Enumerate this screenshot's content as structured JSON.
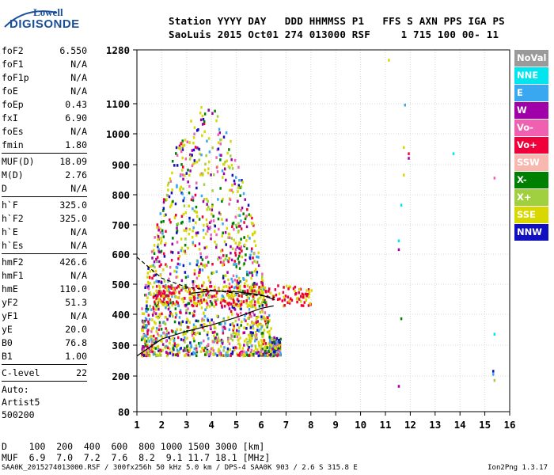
{
  "logo": {
    "line1": "Lowell",
    "line2": "DIGISONDE"
  },
  "header": {
    "row1": "Station YYYY DAY   DDD HHMMSS P1   FFS S AXN PPS IGA PS",
    "row2": "SaoLuis 2015 Oct01 274 013000 RSF     1 715 100 00- 11"
  },
  "params": [
    {
      "label": "foF2",
      "value": "6.550"
    },
    {
      "label": "foF1",
      "value": "N/A"
    },
    {
      "label": "foF1p",
      "value": "N/A"
    },
    {
      "label": "foE",
      "value": "N/A"
    },
    {
      "label": "foEp",
      "value": "0.43"
    },
    {
      "label": "fxI",
      "value": "6.90"
    },
    {
      "label": "foEs",
      "value": "N/A"
    },
    {
      "label": "fmin",
      "value": "1.80"
    },
    {
      "sep": true
    },
    {
      "label": "MUF(D)",
      "value": "18.09"
    },
    {
      "label": "M(D)",
      "value": "2.76"
    },
    {
      "label": "D",
      "value": "N/A"
    },
    {
      "sep": true
    },
    {
      "label": "h`F",
      "value": "325.0"
    },
    {
      "label": "h`F2",
      "value": "325.0"
    },
    {
      "label": "h`E",
      "value": "N/A"
    },
    {
      "label": "h`Es",
      "value": "N/A"
    },
    {
      "sep": true
    },
    {
      "label": "hmF2",
      "value": "426.6"
    },
    {
      "label": "hmF1",
      "value": "N/A"
    },
    {
      "label": "hmE",
      "value": "110.0"
    },
    {
      "label": "yF2",
      "value": "51.3"
    },
    {
      "label": "yF1",
      "value": "N/A"
    },
    {
      "label": "yE",
      "value": "20.0"
    },
    {
      "label": "B0",
      "value": "76.8"
    },
    {
      "label": "B1",
      "value": "1.00"
    },
    {
      "sep": true
    },
    {
      "label": "C-level",
      "value": "22"
    },
    {
      "sep": true
    },
    {
      "text": "Auto:"
    },
    {
      "text": "Artist5"
    },
    {
      "text": "500200"
    }
  ],
  "muf_table": {
    "row1": "D    100  200  400  600  800 1000 1500 3000 [km]",
    "row2": "MUF  6.9  7.0  7.2  7.6  8.2  9.1 11.7 18.1 [MHz]"
  },
  "footer": {
    "left": "SAA0K_2015274013000.RSF / 300fx256h 50 kHz 5.0 km / DPS-4 SAA0K 903 / 2.6 S 315.8 E",
    "right": "Ion2Png 1.3.17"
  },
  "legend": [
    {
      "label": "NoVal",
      "color": "#9a9a9a"
    },
    {
      "label": "NNE",
      "color": "#00e5ee"
    },
    {
      "label": "E",
      "color": "#3aa8f0"
    },
    {
      "label": "W",
      "color": "#a000a8"
    },
    {
      "label": "Vo-",
      "color": "#f060b0"
    },
    {
      "label": "Vo+",
      "color": "#f0003a"
    },
    {
      "label": "SSW",
      "color": "#f8b8b0"
    },
    {
      "label": "X-",
      "color": "#008000"
    },
    {
      "label": "X+",
      "color": "#a0d040"
    },
    {
      "label": "SSE",
      "color": "#d8d800"
    },
    {
      "label": "NNW",
      "color": "#1010c0"
    }
  ],
  "chart_data": {
    "type": "scatter",
    "title": "",
    "xlabel": "",
    "ylabel": "",
    "xlim": [
      1,
      16
    ],
    "ylim": [
      80,
      1280
    ],
    "x_ticks": [
      1,
      2,
      3,
      4,
      5,
      6,
      7,
      8,
      9,
      10,
      11,
      12,
      13,
      14,
      15,
      16
    ],
    "y_ticks": [
      80,
      200,
      300,
      400,
      500,
      600,
      700,
      800,
      900,
      1000,
      1100,
      1280
    ],
    "y_scale": "nonlinear (virtual height axis)",
    "grid": true,
    "clusters": [
      {
        "name": "main echo cloud",
        "x_range": [
          1.1,
          7.0
        ],
        "y_range": [
          270,
          1100
        ]
      },
      {
        "name": "F-trace band",
        "x_range": [
          1.5,
          8.0
        ],
        "y_range": [
          430,
          500
        ]
      },
      {
        "name": "oblique streaks",
        "x_range": [
          11.0,
          13.7
        ],
        "y_range": [
          160,
          1250
        ]
      },
      {
        "name": "high-frequency points",
        "x_range": [
          15.2,
          15.4
        ],
        "y_range": [
          180,
          870
        ]
      }
    ],
    "profile_lines": [
      {
        "name": "lower trace",
        "points": [
          [
            1.0,
            265
          ],
          [
            2.0,
            320
          ],
          [
            3.0,
            345
          ],
          [
            4.0,
            365
          ],
          [
            5.0,
            390
          ],
          [
            6.0,
            420
          ],
          [
            6.5,
            428
          ]
        ]
      },
      {
        "name": "upper trace",
        "points": [
          [
            1.0,
            590
          ],
          [
            2.0,
            520
          ],
          [
            3.0,
            490
          ],
          [
            4.0,
            480
          ],
          [
            5.0,
            470
          ],
          [
            6.0,
            462
          ],
          [
            6.55,
            455
          ]
        ]
      },
      {
        "name": "inner curve",
        "points": [
          [
            3.2,
            470
          ],
          [
            4.0,
            478
          ],
          [
            5.0,
            475
          ],
          [
            6.0,
            465
          ],
          [
            6.55,
            448
          ]
        ]
      }
    ]
  }
}
